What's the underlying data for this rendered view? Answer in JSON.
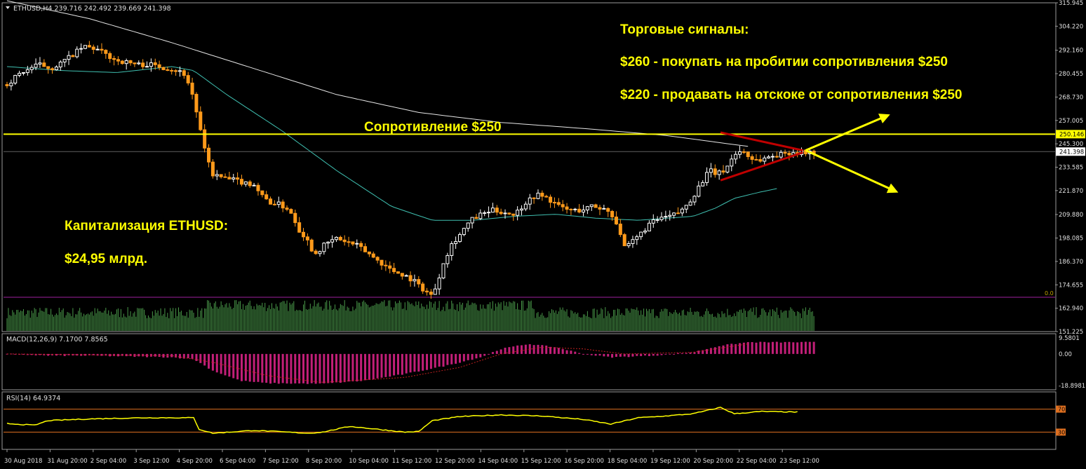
{
  "header": {
    "symbol_line": "ETHUSD,H4  239.716 242.492 239.669 241.398"
  },
  "annotations": {
    "signals_title": "Торговые сигналы:",
    "signal_buy": "$260 -  покупать на пробитии сопротивления $250",
    "signal_sell": "$220 - продавать на отскоке от сопротивления $250",
    "resistance_label": "Сопротивление $250",
    "cap_title": "Капитализация ETHUSD:",
    "cap_value": "$24,95 млрд."
  },
  "colors": {
    "background": "#000000",
    "bull_candle": "#ffffff",
    "bear_candle": "#ff9a1a",
    "ma_slow": "#e6e6e6",
    "ma_fast": "#3fbfb0",
    "resistance": "#ffff00",
    "triangle": "#c00000",
    "arrows": "#ffff00",
    "volume": "#4a9a4a",
    "macd_hist": "#c21f78",
    "macd_signal": "#c02020",
    "rsi_line": "#ffff00",
    "rsi_levels": "#e07020",
    "zero_line": "#a020a0"
  },
  "chart_data": [
    {
      "type": "candlestick",
      "symbol": "ETHUSD",
      "timeframe": "H4",
      "header_ohlc": {
        "open": 239.716,
        "high": 242.492,
        "low": 239.669,
        "close": 241.398
      },
      "ylim": [
        151.225,
        315.945
      ],
      "y_ticks": [
        "315.945",
        "304.220",
        "292.160",
        "280.455",
        "268.730",
        "257.005",
        "245.300",
        "233.585",
        "221.870",
        "209.880",
        "198.085",
        "186.370",
        "174.655",
        "162.940",
        "151.225"
      ],
      "price_badges": {
        "resistance": "250.146",
        "last": "241.398"
      },
      "x_ticks": [
        "30 Aug 2018",
        "31 Aug 20:00",
        "2 Sep 04:00",
        "3 Sep 12:00",
        "4 Sep 20:00",
        "6 Sep 04:00",
        "7 Sep 12:00",
        "8 Sep 20:00",
        "10 Sep 04:00",
        "11 Sep 12:00",
        "12 Sep 20:00",
        "14 Sep 04:00",
        "15 Sep 12:00",
        "16 Sep 20:00",
        "18 Sep 04:00",
        "19 Sep 12:00",
        "20 Sep 20:00",
        "22 Sep 04:00",
        "23 Sep 12:00"
      ],
      "close_path": [
        [
          0,
          275
        ],
        [
          8,
          280
        ],
        [
          16,
          283
        ],
        [
          24,
          285
        ],
        [
          32,
          283
        ],
        [
          40,
          286
        ],
        [
          48,
          290
        ],
        [
          56,
          294
        ],
        [
          64,
          293
        ],
        [
          72,
          290
        ],
        [
          80,
          287
        ],
        [
          88,
          286
        ],
        [
          96,
          285
        ],
        [
          104,
          285
        ],
        [
          112,
          284
        ],
        [
          118,
          283
        ],
        [
          124,
          282
        ],
        [
          130,
          280
        ],
        [
          136,
          268
        ],
        [
          140,
          255
        ],
        [
          144,
          242
        ],
        [
          150,
          230
        ],
        [
          158,
          228
        ],
        [
          166,
          227
        ],
        [
          172,
          226
        ],
        [
          180,
          225
        ],
        [
          186,
          219
        ],
        [
          192,
          216
        ],
        [
          198,
          215
        ],
        [
          204,
          213
        ],
        [
          208,
          210
        ],
        [
          212,
          203
        ],
        [
          218,
          198
        ],
        [
          224,
          190
        ],
        [
          232,
          195
        ],
        [
          240,
          198
        ],
        [
          248,
          196
        ],
        [
          256,
          194
        ],
        [
          264,
          190
        ],
        [
          272,
          186
        ],
        [
          280,
          182
        ],
        [
          288,
          180
        ],
        [
          296,
          177
        ],
        [
          304,
          172
        ],
        [
          310,
          169
        ],
        [
          314,
          177
        ],
        [
          318,
          186
        ],
        [
          324,
          195
        ],
        [
          330,
          200
        ],
        [
          338,
          207
        ],
        [
          346,
          210
        ],
        [
          354,
          212
        ],
        [
          362,
          211
        ],
        [
          370,
          210
        ],
        [
          378,
          216
        ],
        [
          386,
          220
        ],
        [
          394,
          218
        ],
        [
          402,
          214
        ],
        [
          410,
          212
        ],
        [
          418,
          212
        ],
        [
          426,
          214
        ],
        [
          434,
          213
        ],
        [
          440,
          211
        ],
        [
          446,
          203
        ],
        [
          450,
          193
        ],
        [
          454,
          195
        ],
        [
          460,
          199
        ],
        [
          468,
          205
        ],
        [
          476,
          208
        ],
        [
          484,
          209
        ],
        [
          492,
          212
        ],
        [
          500,
          219
        ],
        [
          506,
          226
        ],
        [
          512,
          232
        ],
        [
          518,
          230
        ],
        [
          524,
          233
        ],
        [
          530,
          240
        ],
        [
          536,
          242
        ],
        [
          542,
          238
        ],
        [
          548,
          237
        ],
        [
          556,
          239
        ],
        [
          564,
          240
        ],
        [
          570,
          241
        ],
        [
          576,
          241
        ]
      ],
      "ma_slow": [
        [
          0,
          317
        ],
        [
          60,
          308
        ],
        [
          120,
          296
        ],
        [
          180,
          283
        ],
        [
          240,
          270
        ],
        [
          300,
          261
        ],
        [
          360,
          256
        ],
        [
          420,
          253
        ],
        [
          480,
          249.5
        ],
        [
          540,
          244
        ]
      ],
      "ma_fast": [
        [
          0,
          284
        ],
        [
          40,
          282
        ],
        [
          80,
          281
        ],
        [
          120,
          284
        ],
        [
          136,
          282
        ],
        [
          160,
          270
        ],
        [
          200,
          252
        ],
        [
          240,
          232
        ],
        [
          280,
          214
        ],
        [
          310,
          207
        ],
        [
          340,
          207
        ],
        [
          370,
          209
        ],
        [
          400,
          210
        ],
        [
          430,
          208
        ],
        [
          460,
          207
        ],
        [
          480,
          208
        ],
        [
          500,
          209
        ],
        [
          516,
          213
        ],
        [
          530,
          218
        ],
        [
          548,
          221
        ],
        [
          562,
          223
        ]
      ],
      "resistance_level": 250.146,
      "triangle": {
        "upper": [
          [
            520,
            251
          ],
          [
            580,
            242
          ]
        ],
        "lower": [
          [
            520,
            227
          ],
          [
            580,
            241
          ]
        ]
      },
      "arrows": {
        "up_target": [
          640,
          259
        ],
        "down_target": [
          646,
          222
        ],
        "origin": [
          582,
          242
        ]
      }
    },
    {
      "type": "histogram",
      "name": "MACD(12,26,9) 7.1700 7.8565",
      "ylim": [
        -18.8981,
        9.5801
      ],
      "y_ticks": [
        "9.5801",
        "0.00",
        "-18.8981"
      ],
      "hist_path": [
        [
          0,
          0
        ],
        [
          30,
          -1
        ],
        [
          60,
          -1
        ],
        [
          120,
          -2
        ],
        [
          136,
          -3
        ],
        [
          150,
          -10
        ],
        [
          170,
          -16
        ],
        [
          190,
          -17.5
        ],
        [
          230,
          -17.8
        ],
        [
          260,
          -16
        ],
        [
          290,
          -12
        ],
        [
          320,
          -7
        ],
        [
          345,
          -2
        ],
        [
          360,
          3
        ],
        [
          380,
          6
        ],
        [
          400,
          4
        ],
        [
          420,
          0
        ],
        [
          440,
          -2
        ],
        [
          470,
          -1
        ],
        [
          500,
          1
        ],
        [
          520,
          5
        ],
        [
          540,
          7
        ],
        [
          576,
          7
        ]
      ],
      "signal_path": [
        [
          0,
          0
        ],
        [
          120,
          -1
        ],
        [
          150,
          -5
        ],
        [
          190,
          -13
        ],
        [
          230,
          -17
        ],
        [
          290,
          -14
        ],
        [
          330,
          -8
        ],
        [
          360,
          0
        ],
        [
          390,
          4
        ],
        [
          420,
          3
        ],
        [
          450,
          0
        ],
        [
          500,
          1
        ],
        [
          540,
          6
        ]
      ]
    },
    {
      "type": "line",
      "name": "RSI(14) 64.9374",
      "ylim": [
        0,
        100
      ],
      "levels": [
        70,
        30
      ],
      "level_labels": [
        "70",
        "30"
      ],
      "values_path": [
        [
          0,
          45
        ],
        [
          20,
          42
        ],
        [
          30,
          50
        ],
        [
          60,
          53
        ],
        [
          100,
          55
        ],
        [
          136,
          55
        ],
        [
          140,
          35
        ],
        [
          150,
          28
        ],
        [
          180,
          33
        ],
        [
          220,
          28
        ],
        [
          230,
          30
        ],
        [
          250,
          40
        ],
        [
          290,
          30
        ],
        [
          300,
          31
        ],
        [
          310,
          50
        ],
        [
          330,
          57
        ],
        [
          360,
          60
        ],
        [
          390,
          58
        ],
        [
          420,
          52
        ],
        [
          440,
          44
        ],
        [
          460,
          55
        ],
        [
          480,
          58
        ],
        [
          500,
          62
        ],
        [
          520,
          73
        ],
        [
          530,
          62
        ],
        [
          550,
          66
        ],
        [
          576,
          64.9
        ]
      ]
    }
  ]
}
